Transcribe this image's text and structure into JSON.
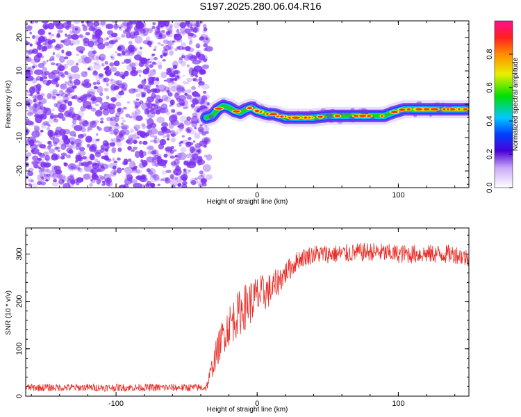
{
  "title": "S197.2025.280.06.04.R16",
  "colors": {
    "snr_line": "#e8302a",
    "speckle": "#7a2df0",
    "frame": "#000000"
  },
  "chart_data": [
    {
      "type": "heatmap",
      "title": "S197.2025.280.06.04.R16",
      "xlabel": "Height of straight line (km)",
      "ylabel": "Frequency (Hz)",
      "xlim": [
        -164,
        150
      ],
      "ylim": [
        -25,
        25
      ],
      "xticks": [
        -100,
        0,
        100
      ],
      "yticks": [
        -20,
        -10,
        0,
        10,
        20
      ],
      "xtick_labels": [
        "-100",
        "0",
        "100"
      ],
      "ytick_labels": [
        "-20",
        "-10",
        "0",
        "10",
        "20"
      ],
      "noise_region_x": [
        -164,
        -36
      ],
      "signal_track": {
        "x": [
          -36,
          -32,
          -28,
          -24,
          -20,
          -16,
          -12,
          -8,
          -4,
          0,
          4,
          8,
          12,
          16,
          20,
          30,
          40,
          50,
          60,
          70,
          80,
          90,
          96,
          100,
          104,
          110,
          120,
          130,
          140,
          150
        ],
        "freq": [
          -4,
          -3.5,
          -1.5,
          -0.5,
          -1,
          -2,
          -2.5,
          -1.5,
          -1,
          -2,
          -2.5,
          -3,
          -3,
          -3.5,
          -4,
          -4,
          -4,
          -3.5,
          -3.5,
          -3.5,
          -3.5,
          -3.5,
          -2.5,
          -2,
          -1.5,
          -1.5,
          -1.5,
          -1.5,
          -1.5,
          -1.5
        ]
      },
      "colorbar": {
        "label": "Normalized spectral amplitude",
        "range": [
          0,
          1
        ],
        "ticks": [
          0.0,
          0.2,
          0.4,
          0.6,
          0.8
        ],
        "tick_labels": [
          "0.0",
          "0.2",
          "0.4",
          "0.6",
          "0.8"
        ]
      }
    },
    {
      "type": "line",
      "xlabel": "Height of straight line (km)",
      "ylabel": "SNR (10 * v/v)",
      "xlim": [
        -164,
        150
      ],
      "ylim": [
        0,
        355
      ],
      "xticks": [
        -100,
        0,
        100
      ],
      "yticks": [
        0,
        100,
        200,
        300
      ],
      "xtick_labels": [
        "-100",
        "0",
        "100"
      ],
      "ytick_labels": [
        "0",
        "100",
        "200",
        "300"
      ],
      "series": [
        {
          "name": "SNR",
          "x": [
            -164,
            -100,
            -36,
            -30,
            -24,
            -20,
            -10,
            0,
            10,
            20,
            30,
            40,
            60,
            80,
            100,
            120,
            140,
            150
          ],
          "mean": [
            18,
            18,
            18,
            80,
            130,
            150,
            185,
            210,
            225,
            260,
            290,
            300,
            300,
            305,
            300,
            300,
            300,
            290
          ],
          "jitter": [
            8,
            8,
            8,
            30,
            40,
            45,
            50,
            45,
            35,
            25,
            20,
            20,
            20,
            20,
            20,
            20,
            20,
            20
          ]
        }
      ]
    }
  ]
}
